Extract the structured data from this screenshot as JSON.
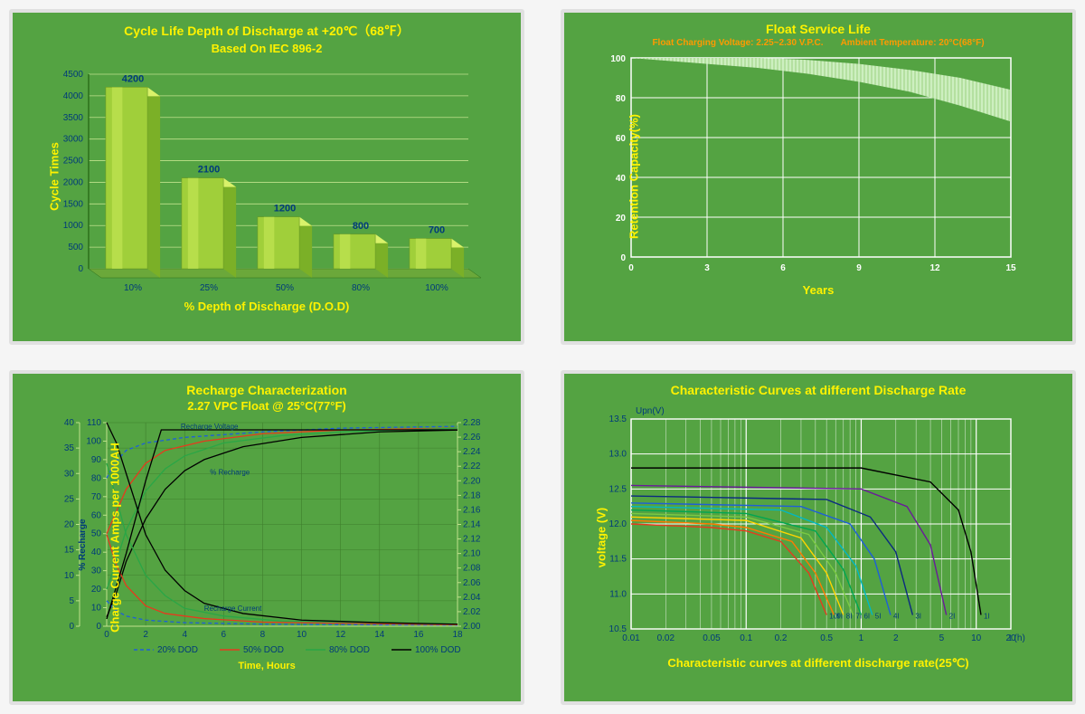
{
  "panel1": {
    "title1": "Cycle Life Depth of Discharge at +20℃（68℉）",
    "title2": "Based On IEC 896-2",
    "ylabel": "Cycle Times",
    "xlabel": "% Depth of Discharge (D.O.D)",
    "type": "bar-3d",
    "categories": [
      "10%",
      "25%",
      "50%",
      "80%",
      "100%"
    ],
    "values": [
      4200,
      2100,
      1200,
      800,
      700
    ],
    "ylim": [
      0,
      4500
    ],
    "ytick_step": 500,
    "bar_color_top": "#d9f26a",
    "bar_color_front": "#a0cf3a",
    "bar_color_side": "#7bb027",
    "floor_color": "#6ba83a",
    "grid_color": "#bfe28c",
    "axis_color": "#2c6f1a",
    "label_color": "#003b7a",
    "background_color": "#54a342",
    "title_color": "#fff200",
    "title_fontsize": 14,
    "label_fontsize": 11,
    "tick_fontsize": 10,
    "bar_width_rel": 0.55
  },
  "panel2": {
    "title1": "Float Service Life",
    "subtitle_left": "Float Charging  Voltage: 2.25~2.30 V.P.C.",
    "subtitle_right": "Ambient Temperature: 20°C(68°F)",
    "ylabel": "Retention Capacity(%)",
    "xlabel": "Years",
    "type": "area-band",
    "xlim": [
      0,
      15
    ],
    "xtick_step": 3,
    "ylim": [
      0,
      100
    ],
    "ytick_step": 20,
    "upper": [
      [
        0,
        102
      ],
      [
        1,
        102
      ],
      [
        3,
        101
      ],
      [
        5,
        100
      ],
      [
        7,
        99
      ],
      [
        9,
        97
      ],
      [
        11,
        94
      ],
      [
        13,
        90
      ],
      [
        15,
        84
      ]
    ],
    "lower": [
      [
        0,
        100
      ],
      [
        1,
        99
      ],
      [
        3,
        97
      ],
      [
        5,
        95
      ],
      [
        7,
        92
      ],
      [
        9,
        88
      ],
      [
        11,
        83
      ],
      [
        13,
        76
      ],
      [
        15,
        68
      ]
    ],
    "band_fill": "#cdefc0",
    "band_hatch_color": "#9ad080",
    "grid_color": "#ffffff",
    "border_color": "#ffffff",
    "axis_text_color": "#ffffff",
    "background_color": "#54a342",
    "title_color": "#fff200",
    "subtitle_color": "#ff9a00",
    "title_fontsize": 14,
    "subtitle_fontsize": 10,
    "tick_fontsize": 10
  },
  "panel3": {
    "title1": "Recharge Characterization",
    "title2": "2.27 VPC Float @ 25°C(77°F)",
    "ylabel": "Charge Current Amps per 1000AH",
    "y2label": "% Recharge",
    "xlabel": "Time, Hours",
    "type": "multi-line-3-axis",
    "xlim": [
      0,
      18
    ],
    "xtick_step": 2,
    "y1": {
      "lim": [
        0,
        40
      ],
      "step": 5
    },
    "y2": {
      "lim": [
        0,
        110
      ],
      "step": 10
    },
    "y3": {
      "lim": [
        2.0,
        2.28
      ],
      "step": 0.02
    },
    "annotations": {
      "voltage": "Recharge Voltage",
      "percent": "% Recharge",
      "current": "Recharge Current"
    },
    "legend": [
      {
        "label": "20% DOD",
        "color": "#1e5fd8",
        "dash": "4 3"
      },
      {
        "label": "50% DOD",
        "color": "#e63a1e",
        "dash": null
      },
      {
        "label": "80% DOD",
        "color": "#2aa646",
        "dash": null
      },
      {
        "label": "100% DOD",
        "color": "#000000",
        "dash": null
      }
    ],
    "grid_color": "#3f7f2d",
    "tick_color": "#bfe28c",
    "axis_color": "#003b7a",
    "background_color": "#54a342",
    "title_color": "#fff200",
    "title_fontsize": 14,
    "tick_fontsize": 10,
    "series_percent": {
      "20": [
        [
          0,
          80
        ],
        [
          0.4,
          88
        ],
        [
          1,
          95
        ],
        [
          2,
          99
        ],
        [
          4,
          102
        ],
        [
          8,
          105
        ],
        [
          12,
          107
        ],
        [
          18,
          108
        ]
      ],
      "50": [
        [
          0,
          50
        ],
        [
          0.5,
          62
        ],
        [
          1,
          74
        ],
        [
          2,
          88
        ],
        [
          3,
          95
        ],
        [
          5,
          100
        ],
        [
          8,
          104
        ],
        [
          12,
          106
        ],
        [
          18,
          107
        ]
      ],
      "80": [
        [
          0,
          20
        ],
        [
          0.5,
          35
        ],
        [
          1,
          52
        ],
        [
          2,
          73
        ],
        [
          3,
          85
        ],
        [
          4,
          92
        ],
        [
          6,
          99
        ],
        [
          9,
          103
        ],
        [
          12,
          105
        ],
        [
          18,
          107
        ]
      ],
      "100": [
        [
          0,
          5
        ],
        [
          0.5,
          18
        ],
        [
          1,
          35
        ],
        [
          2,
          58
        ],
        [
          3,
          74
        ],
        [
          4,
          84
        ],
        [
          5,
          90
        ],
        [
          7,
          97
        ],
        [
          10,
          102
        ],
        [
          14,
          105
        ],
        [
          18,
          106
        ]
      ]
    },
    "series_current": {
      "20": [
        [
          0,
          5
        ],
        [
          0.5,
          3
        ],
        [
          1,
          2
        ],
        [
          2,
          1.2
        ],
        [
          4,
          0.7
        ],
        [
          8,
          0.4
        ],
        [
          18,
          0.2
        ]
      ],
      "50": [
        [
          0,
          18
        ],
        [
          0.5,
          12
        ],
        [
          1,
          8
        ],
        [
          2,
          4
        ],
        [
          3,
          2.5
        ],
        [
          5,
          1.5
        ],
        [
          8,
          0.8
        ],
        [
          18,
          0.3
        ]
      ],
      "80": [
        [
          0,
          32
        ],
        [
          0.5,
          25
        ],
        [
          1,
          18
        ],
        [
          2,
          10
        ],
        [
          3,
          6
        ],
        [
          4,
          3.5
        ],
        [
          6,
          2
        ],
        [
          9,
          1
        ],
        [
          18,
          0.4
        ]
      ],
      "100": [
        [
          0,
          40
        ],
        [
          0.5,
          36
        ],
        [
          1,
          30
        ],
        [
          2,
          18
        ],
        [
          3,
          11
        ],
        [
          4,
          7
        ],
        [
          5,
          4.5
        ],
        [
          7,
          2.5
        ],
        [
          10,
          1.2
        ],
        [
          14,
          0.7
        ],
        [
          18,
          0.4
        ]
      ]
    },
    "series_voltage": {
      "ref": [
        [
          0,
          2.01
        ],
        [
          1,
          2.1
        ],
        [
          2,
          2.2
        ],
        [
          2.8,
          2.27
        ],
        [
          3.5,
          2.27
        ],
        [
          18,
          2.27
        ]
      ]
    }
  },
  "panel4": {
    "title1": "Characteristic Curves at different Discharge Rate",
    "bottomtitle": "Characteristic curves at different discharge rate(25℃)",
    "ylabel": "voltage (V)",
    "xlabel": "t (h)",
    "yheader": "Upn(V)",
    "type": "line-logx",
    "xlim": [
      0.01,
      20
    ],
    "xticks": [
      0.01,
      0.02,
      0.05,
      0.1,
      0.2,
      0.5,
      1,
      2,
      5,
      10,
      20
    ],
    "ylim": [
      10.5,
      13.5
    ],
    "ytick_step": 0.5,
    "series": [
      {
        "name": "10I",
        "color": "#e63a1e",
        "pts": [
          [
            0.01,
            12.0
          ],
          [
            0.05,
            11.95
          ],
          [
            0.1,
            11.9
          ],
          [
            0.2,
            11.75
          ],
          [
            0.35,
            11.3
          ],
          [
            0.5,
            10.7
          ]
        ]
      },
      {
        "name": "9I",
        "color": "#ff7a00",
        "pts": [
          [
            0.01,
            12.05
          ],
          [
            0.05,
            12.0
          ],
          [
            0.1,
            11.95
          ],
          [
            0.25,
            11.75
          ],
          [
            0.4,
            11.3
          ],
          [
            0.58,
            10.7
          ]
        ]
      },
      {
        "name": "8I",
        "color": "#ffd400",
        "pts": [
          [
            0.01,
            12.1
          ],
          [
            0.1,
            12.05
          ],
          [
            0.3,
            11.8
          ],
          [
            0.5,
            11.3
          ],
          [
            0.7,
            10.7
          ]
        ]
      },
      {
        "name": "7I",
        "color": "#7ac943",
        "pts": [
          [
            0.01,
            12.15
          ],
          [
            0.1,
            12.1
          ],
          [
            0.35,
            11.85
          ],
          [
            0.6,
            11.3
          ],
          [
            0.85,
            10.7
          ]
        ]
      },
      {
        "name": "6I",
        "color": "#00a651",
        "pts": [
          [
            0.01,
            12.2
          ],
          [
            0.1,
            12.15
          ],
          [
            0.4,
            11.9
          ],
          [
            0.7,
            11.35
          ],
          [
            1.0,
            10.7
          ]
        ]
      },
      {
        "name": "5I",
        "color": "#00b8c4",
        "pts": [
          [
            0.01,
            12.25
          ],
          [
            0.2,
            12.2
          ],
          [
            0.5,
            11.95
          ],
          [
            0.9,
            11.4
          ],
          [
            1.25,
            10.7
          ]
        ]
      },
      {
        "name": "4I",
        "color": "#1e5fd8",
        "pts": [
          [
            0.01,
            12.3
          ],
          [
            0.3,
            12.25
          ],
          [
            0.8,
            12.0
          ],
          [
            1.3,
            11.5
          ],
          [
            1.8,
            10.7
          ]
        ]
      },
      {
        "name": "3I",
        "color": "#0b2a80",
        "pts": [
          [
            0.01,
            12.4
          ],
          [
            0.5,
            12.35
          ],
          [
            1.2,
            12.1
          ],
          [
            2.0,
            11.6
          ],
          [
            2.8,
            10.7
          ]
        ]
      },
      {
        "name": "2I",
        "color": "#6a1b9a",
        "pts": [
          [
            0.01,
            12.55
          ],
          [
            1,
            12.5
          ],
          [
            2.5,
            12.25
          ],
          [
            4,
            11.7
          ],
          [
            5.5,
            10.7
          ]
        ]
      },
      {
        "name": "1I",
        "color": "#000000",
        "pts": [
          [
            0.01,
            12.8
          ],
          [
            1,
            12.8
          ],
          [
            4,
            12.6
          ],
          [
            7,
            12.2
          ],
          [
            9,
            11.6
          ],
          [
            11,
            10.7
          ]
        ]
      }
    ],
    "grid_color": "#ffffff",
    "background_color": "#54a342",
    "title_color": "#fff200",
    "axis_text_color": "#003b7a",
    "title_fontsize": 14,
    "tick_fontsize": 10
  }
}
